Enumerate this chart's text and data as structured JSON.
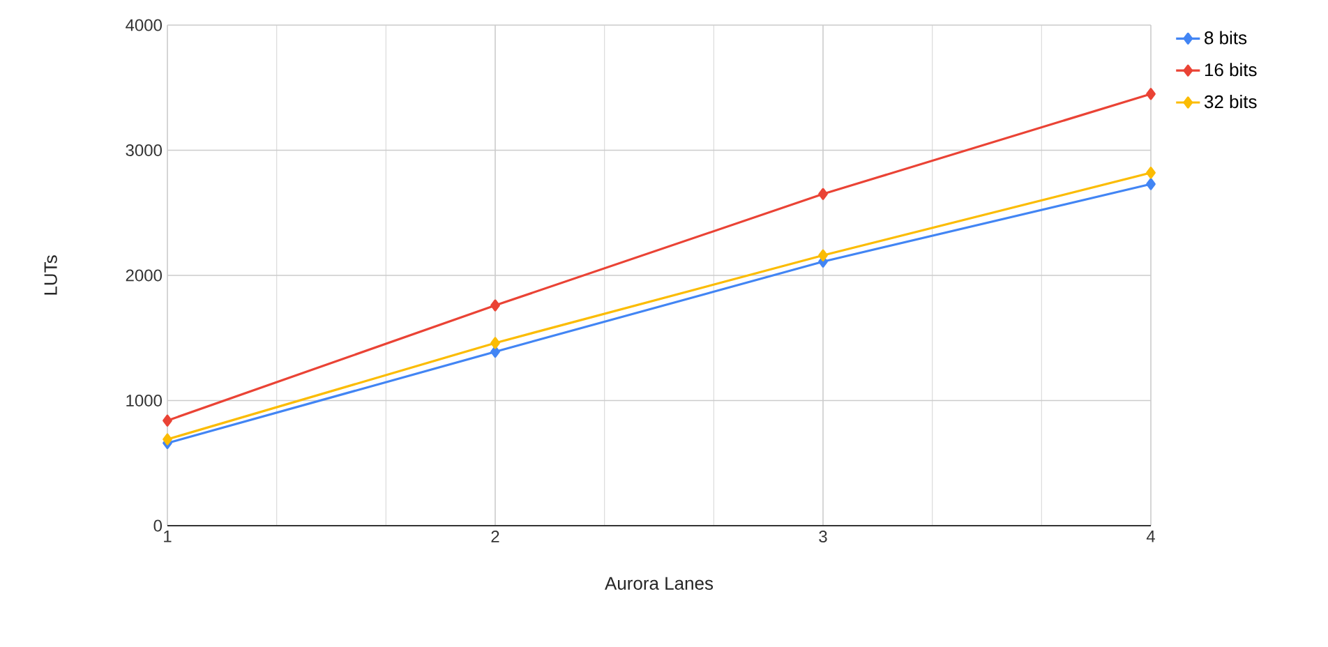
{
  "chart_data": {
    "type": "line",
    "xlabel": "Aurora Lanes",
    "ylabel": "LUTs",
    "x": [
      1,
      2,
      3,
      4
    ],
    "series": [
      {
        "name": "8 bits",
        "color": "#4285f4",
        "values": [
          660,
          1390,
          2110,
          2730
        ]
      },
      {
        "name": "16 bits",
        "color": "#ea4335",
        "values": [
          840,
          1760,
          2650,
          3450
        ]
      },
      {
        "name": "32 bits",
        "color": "#fbbc04",
        "values": [
          690,
          1460,
          2160,
          2820
        ]
      }
    ],
    "xlim": [
      1,
      4
    ],
    "xticks": [
      1,
      2,
      3,
      4
    ],
    "ylim": [
      0,
      4000
    ],
    "yticks": [
      0,
      1000,
      2000,
      3000,
      4000
    ],
    "grid": true,
    "legend": "top right",
    "marker": "diamond",
    "line_style": "solid"
  }
}
